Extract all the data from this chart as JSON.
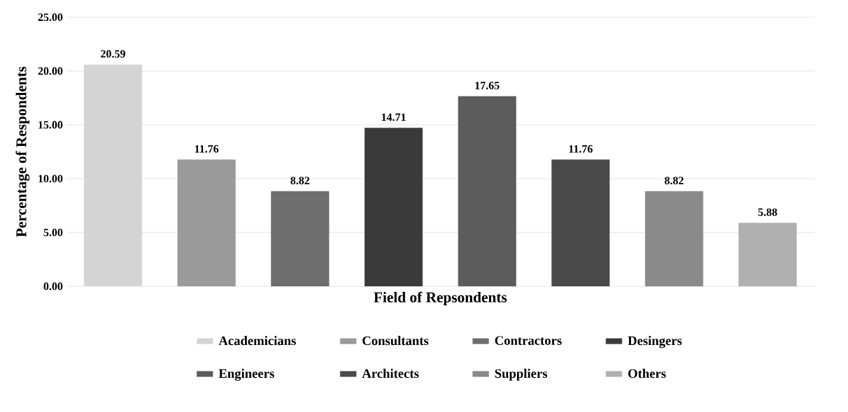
{
  "chart_data": {
    "type": "bar",
    "xlabel": "Field of Repsondents",
    "ylabel": "Percentage of Respondents",
    "categories": [
      null,
      null,
      null,
      null,
      null,
      null,
      null,
      null
    ],
    "series": [
      {
        "name": "Academicians",
        "color": "#d4d4d4",
        "values": [
          20.59,
          null,
          null,
          null,
          null,
          null,
          null,
          null
        ]
      },
      {
        "name": "Consultants",
        "color": "#9a9a9a",
        "values": [
          null,
          11.76,
          null,
          null,
          null,
          null,
          null,
          null
        ]
      },
      {
        "name": "Contractors",
        "color": "#6e6e6e",
        "values": [
          null,
          null,
          8.82,
          null,
          null,
          null,
          null,
          null
        ]
      },
      {
        "name": "Desingers",
        "color": "#3a3a3a",
        "values": [
          null,
          null,
          null,
          14.71,
          null,
          null,
          null,
          null
        ]
      },
      {
        "name": "Engineers",
        "color": "#5c5c5c",
        "values": [
          null,
          null,
          null,
          null,
          17.65,
          null,
          null,
          null
        ]
      },
      {
        "name": "Architects",
        "color": "#4a4a4a",
        "values": [
          null,
          null,
          null,
          null,
          null,
          11.76,
          null,
          null
        ]
      },
      {
        "name": "Suppliers",
        "color": "#8a8a8a",
        "values": [
          null,
          null,
          null,
          null,
          null,
          null,
          8.82,
          null
        ]
      },
      {
        "name": "Others",
        "color": "#b0b0b0",
        "values": [
          null,
          null,
          null,
          null,
          null,
          null,
          null,
          5.88
        ]
      }
    ],
    "ylim": [
      0,
      25
    ],
    "yticks": [
      {
        "value": 0,
        "label": "0.00"
      },
      {
        "value": 5,
        "label": "5.00"
      },
      {
        "value": 10,
        "label": "10.00"
      },
      {
        "value": 15,
        "label": "15.00"
      },
      {
        "value": 20,
        "label": "20.00"
      },
      {
        "value": 25,
        "label": "25.00"
      }
    ],
    "grid": "y",
    "legend": "bottom",
    "data_labels": true
  }
}
